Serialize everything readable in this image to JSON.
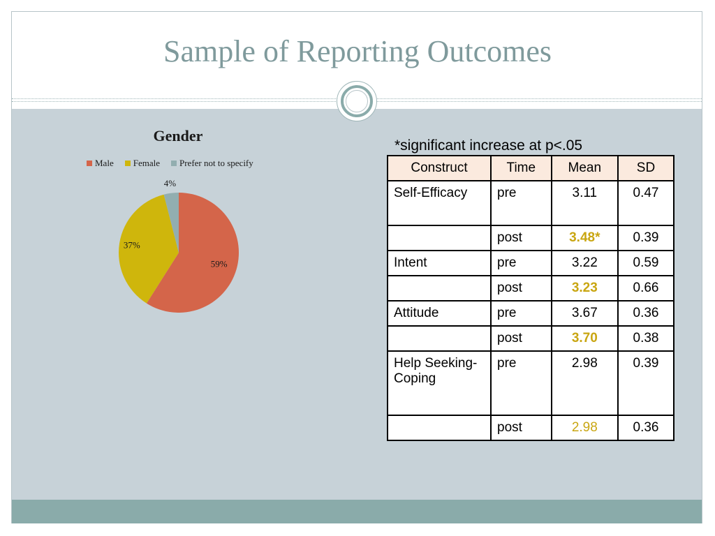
{
  "slide": {
    "title": "Sample of Reporting Outcomes",
    "note": "*significant increase at p<.05",
    "colors": {
      "title": "#7f9a9c",
      "content_bg": "#c7d2d8",
      "footer": "#8aabaa",
      "header_bg": "#fbeade",
      "significant": "#c9a612"
    }
  },
  "chart_data": {
    "type": "pie",
    "title": "Gender",
    "legend_position": "top",
    "categories": [
      "Male",
      "Female",
      "Prefer not to specify"
    ],
    "values": [
      59,
      37,
      4
    ],
    "labels": [
      "59%",
      "37%",
      "4%"
    ],
    "colors": [
      "#d4654a",
      "#cfb60c",
      "#92aeb0"
    ]
  },
  "table": {
    "headers": [
      "Construct",
      "Time",
      "Mean",
      "SD"
    ],
    "rows": [
      {
        "construct": "Self-Efficacy",
        "time": "pre",
        "mean": "3.11",
        "sd": "0.47",
        "highlight": "none"
      },
      {
        "construct": "",
        "time": "post",
        "mean": "3.48*",
        "sd": "0.39",
        "highlight": "bold"
      },
      {
        "construct": "Intent",
        "time": "pre",
        "mean": "3.22",
        "sd": "0.59",
        "highlight": "none"
      },
      {
        "construct": "",
        "time": "post",
        "mean": "3.23",
        "sd": "0.66",
        "highlight": "bold"
      },
      {
        "construct": "Attitude",
        "time": "pre",
        "mean": "3.67",
        "sd": "0.36",
        "highlight": "none"
      },
      {
        "construct": "",
        "time": "post",
        "mean": "3.70",
        "sd": "0.38",
        "highlight": "bold"
      },
      {
        "construct": "Help Seeking-Coping",
        "time": "pre",
        "mean": "2.98",
        "sd": "0.39",
        "highlight": "none"
      },
      {
        "construct": "",
        "time": "post",
        "mean": "2.98",
        "sd": "0.36",
        "highlight": "plain"
      }
    ]
  }
}
